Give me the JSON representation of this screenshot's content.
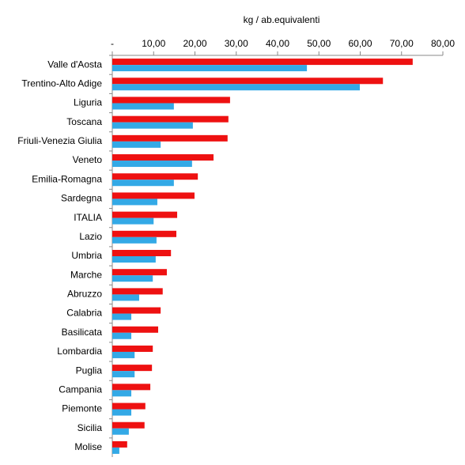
{
  "chart_data": {
    "type": "hbar",
    "x_label": "kg / ab.equivalenti",
    "categories": [
      "Valle d'Aosta",
      "Trentino-Alto Adige",
      "Liguria",
      "Toscana",
      "Friuli-Venezia Giulia",
      "Veneto",
      "Emilia-Romagna",
      "Sardegna",
      "ITALIA",
      "Lazio",
      "Umbria",
      "Marche",
      "Abruzzo",
      "Calabria",
      "Basilicata",
      "Lombardia",
      "Puglia",
      "Campania",
      "Piemonte",
      "Sicilia",
      "Molise"
    ],
    "series": [
      {
        "color": "#ee1111",
        "values": [
          72.7,
          65.5,
          28.5,
          28.1,
          27.9,
          24.5,
          20.7,
          19.9,
          15.7,
          15.5,
          14.2,
          13.2,
          12.2,
          11.7,
          11.1,
          9.8,
          9.6,
          9.2,
          8.0,
          7.8,
          3.6
        ]
      },
      {
        "color": "#33a9e6",
        "values": [
          47.1,
          59.9,
          14.9,
          19.5,
          11.7,
          19.3,
          14.9,
          10.9,
          10.0,
          10.7,
          10.5,
          9.8,
          6.5,
          4.6,
          4.6,
          5.4,
          5.4,
          4.6,
          4.6,
          4.0,
          1.7
        ]
      }
    ],
    "xlim": [
      0,
      80
    ],
    "xticks": [
      {
        "value": 0,
        "label": "-"
      },
      {
        "value": 10,
        "label": "10,00"
      },
      {
        "value": 20,
        "label": "20,00"
      },
      {
        "value": 30,
        "label": "30,00"
      },
      {
        "value": 40,
        "label": "40,00"
      },
      {
        "value": 50,
        "label": "50,00"
      },
      {
        "value": 60,
        "label": "60,00"
      },
      {
        "value": 70,
        "label": "70,00"
      },
      {
        "value": 80,
        "label": "80,00"
      }
    ],
    "grid": false
  }
}
